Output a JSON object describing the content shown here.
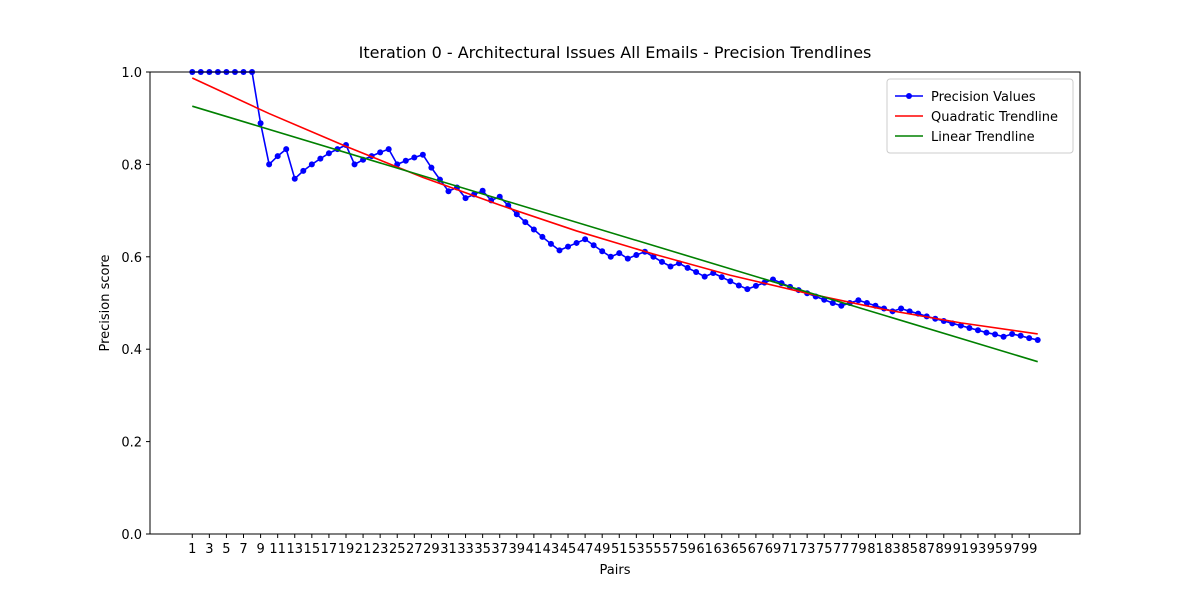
{
  "chart_data": {
    "type": "line",
    "title": "Iteration 0 - Architectural Issues All Emails - Precision Trendlines",
    "xlabel": "Pairs",
    "ylabel": "Precision score",
    "xlim": [
      -3.95,
      104.95
    ],
    "ylim": [
      0,
      1
    ],
    "xticks": [
      1,
      3,
      5,
      7,
      9,
      11,
      13,
      15,
      17,
      19,
      21,
      23,
      25,
      27,
      29,
      31,
      33,
      35,
      37,
      39,
      41,
      43,
      45,
      47,
      49,
      51,
      53,
      55,
      57,
      59,
      61,
      63,
      65,
      67,
      69,
      71,
      73,
      75,
      77,
      79,
      81,
      83,
      85,
      87,
      89,
      91,
      93,
      95,
      97,
      99
    ],
    "yticks": [
      {
        "value": 0,
        "label": "0.0"
      },
      {
        "value": 0.2,
        "label": "0.2"
      },
      {
        "value": 0.4,
        "label": "0.4"
      },
      {
        "value": 0.6,
        "label": "0.6"
      },
      {
        "value": 0.8,
        "label": "0.8"
      },
      {
        "value": 1,
        "label": "1.0"
      }
    ],
    "grid": false,
    "legend": "upper right",
    "series": [
      {
        "name": "Precision Values",
        "color": "#0000ff",
        "marker": true,
        "x": [
          1,
          2,
          3,
          4,
          5,
          6,
          7,
          8,
          9,
          10,
          11,
          12,
          13,
          14,
          15,
          16,
          17,
          18,
          19,
          20,
          21,
          22,
          23,
          24,
          25,
          26,
          27,
          28,
          29,
          30,
          31,
          32,
          33,
          34,
          35,
          36,
          37,
          38,
          39,
          40,
          41,
          42,
          43,
          44,
          45,
          46,
          47,
          48,
          49,
          50,
          51,
          52,
          53,
          54,
          55,
          56,
          57,
          58,
          59,
          60,
          61,
          62,
          63,
          64,
          65,
          66,
          67,
          68,
          69,
          70,
          71,
          72,
          73,
          74,
          75,
          76,
          77,
          78,
          79,
          80,
          81,
          82,
          83,
          84,
          85,
          86,
          87,
          88,
          89,
          90,
          91,
          92,
          93,
          94,
          95,
          96,
          97,
          98,
          99,
          100
        ],
        "values": [
          1,
          1,
          1,
          1,
          1,
          1,
          1,
          1,
          0.889,
          0.8,
          0.818,
          0.833,
          0.769,
          0.786,
          0.8,
          0.8125,
          0.824,
          0.833,
          0.842,
          0.8,
          0.81,
          0.818,
          0.826,
          0.833,
          0.8,
          0.808,
          0.815,
          0.821,
          0.793,
          0.767,
          0.742,
          0.75,
          0.727,
          0.735,
          0.743,
          0.722,
          0.73,
          0.711,
          0.692,
          0.675,
          0.659,
          0.643,
          0.628,
          0.614,
          0.622,
          0.63,
          0.638,
          0.625,
          0.612,
          0.6,
          0.608,
          0.596,
          0.604,
          0.611,
          0.6,
          0.589,
          0.579,
          0.586,
          0.576,
          0.567,
          0.557,
          0.565,
          0.556,
          0.547,
          0.538,
          0.53,
          0.537,
          0.544,
          0.551,
          0.543,
          0.535,
          0.528,
          0.521,
          0.514,
          0.507,
          0.5,
          0.494,
          0.5,
          0.506,
          0.5,
          0.494,
          0.488,
          0.482,
          0.488,
          0.482,
          0.477,
          0.471,
          0.466,
          0.461,
          0.456,
          0.451,
          0.446,
          0.441,
          0.436,
          0.432,
          0.427,
          0.433,
          0.429,
          0.424,
          0.42
        ]
      },
      {
        "name": "Quadratic Trendline",
        "color": "#ff0000",
        "marker": false,
        "x": [
          1,
          10,
          19,
          28,
          37,
          46,
          55,
          64,
          73,
          82,
          91,
          100
        ],
        "values": [
          0.987,
          0.91,
          0.839,
          0.772,
          0.712,
          0.656,
          0.606,
          0.56,
          0.521,
          0.486,
          0.457,
          0.433
        ]
      },
      {
        "name": "Linear Trendline",
        "color": "#008000",
        "marker": false,
        "x": [
          1,
          100
        ],
        "values": [
          0.926,
          0.373
        ]
      }
    ]
  }
}
